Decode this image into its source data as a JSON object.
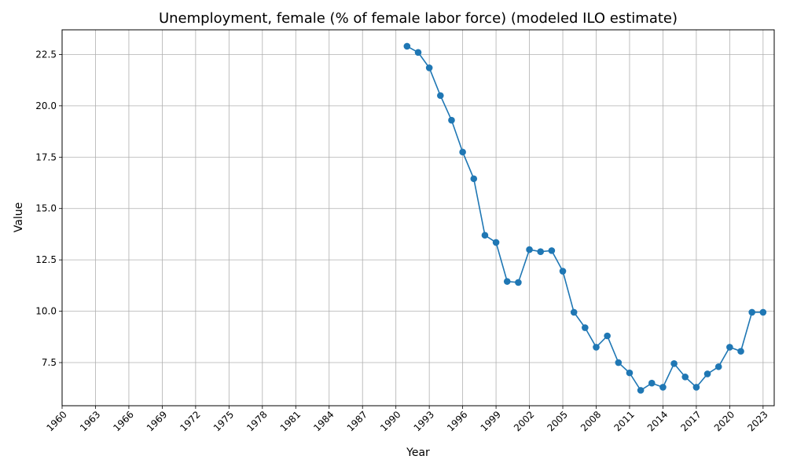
{
  "chart_data": {
    "type": "line",
    "title": "Unemployment, female (% of female labor force) (modeled ILO estimate)",
    "xlabel": "Year",
    "ylabel": "Value",
    "xlim": [
      1960,
      2024
    ],
    "ylim": [
      5.4,
      23.7
    ],
    "x_ticks": [
      "1960",
      "1963",
      "1966",
      "1969",
      "1972",
      "1975",
      "1978",
      "1981",
      "1984",
      "1987",
      "1990",
      "1993",
      "1996",
      "1999",
      "2002",
      "2005",
      "2008",
      "2011",
      "2014",
      "2017",
      "2020",
      "2023"
    ],
    "y_ticks": [
      "7.5",
      "10.0",
      "12.5",
      "15.0",
      "17.5",
      "20.0",
      "22.5"
    ],
    "grid": true,
    "legend": "none",
    "colors": {
      "line": "#1f77b4",
      "grid": "#b0b0b0",
      "axis": "#000000"
    },
    "series": [
      {
        "marker": "circle",
        "x": [
          1991,
          1992,
          1993,
          1994,
          1995,
          1996,
          1997,
          1998,
          1999,
          2000,
          2001,
          2002,
          2003,
          2004,
          2005,
          2006,
          2007,
          2008,
          2009,
          2010,
          2011,
          2012,
          2013,
          2014,
          2015,
          2016,
          2017,
          2018,
          2019,
          2020,
          2021,
          2022,
          2023
        ],
        "values": [
          22.9,
          22.6,
          21.85,
          20.5,
          19.3,
          17.75,
          16.45,
          13.7,
          13.35,
          11.45,
          11.4,
          13.0,
          12.9,
          12.95,
          11.95,
          9.95,
          9.2,
          8.25,
          8.8,
          7.5,
          7.0,
          6.15,
          6.5,
          6.3,
          7.45,
          6.8,
          6.3,
          6.95,
          7.3,
          8.25,
          8.05,
          9.95,
          9.95
        ]
      }
    ]
  }
}
